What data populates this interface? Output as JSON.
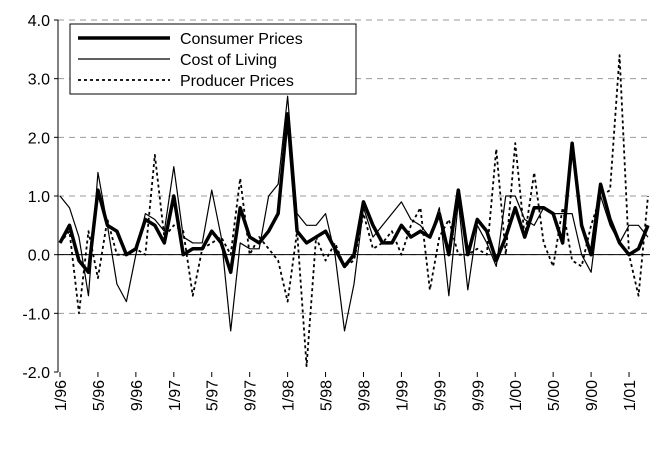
{
  "chart_data": {
    "type": "line",
    "categories": [
      "1/96",
      null,
      null,
      null,
      "5/96",
      null,
      null,
      null,
      "9/96",
      null,
      null,
      null,
      "1/97",
      null,
      null,
      null,
      "5/97",
      null,
      null,
      null,
      "9/97",
      null,
      null,
      null,
      "1/98",
      null,
      null,
      null,
      "5/98",
      null,
      null,
      null,
      "9/98",
      null,
      null,
      null,
      "1/99",
      null,
      null,
      null,
      "5/99",
      null,
      null,
      null,
      "9/99",
      null,
      null,
      null,
      "1/00",
      null,
      null,
      null,
      "5/00",
      null,
      null,
      null,
      "9/00",
      null,
      null,
      null,
      "1/01",
      null,
      null
    ],
    "series": [
      {
        "name": "Consumer Prices",
        "color": "#000000",
        "style": "thick",
        "values": [
          0.2,
          0.5,
          -0.1,
          -0.3,
          1.1,
          0.5,
          0.4,
          0.0,
          0.1,
          0.6,
          0.5,
          0.2,
          1.0,
          0.0,
          0.1,
          0.1,
          0.4,
          0.2,
          -0.3,
          0.8,
          0.3,
          0.2,
          0.4,
          0.7,
          2.4,
          0.4,
          0.2,
          0.3,
          0.4,
          0.1,
          -0.2,
          0.0,
          0.9,
          0.5,
          0.2,
          0.2,
          0.5,
          0.3,
          0.4,
          0.3,
          0.7,
          0.0,
          1.1,
          0.0,
          0.6,
          0.4,
          -0.1,
          0.3,
          0.8,
          0.3,
          0.8,
          0.8,
          0.7,
          0.2,
          1.9,
          0.5,
          0.0,
          1.2,
          0.6,
          0.2,
          0.0,
          0.1,
          0.5
        ]
      },
      {
        "name": "Cost of Living",
        "color": "#000000",
        "style": "thin",
        "values": [
          1.0,
          0.8,
          0.3,
          -0.7,
          1.4,
          0.5,
          -0.5,
          -0.8,
          0.0,
          0.7,
          0.6,
          0.4,
          1.5,
          0.3,
          0.2,
          0.2,
          1.1,
          0.3,
          -1.3,
          0.2,
          0.1,
          0.1,
          1.0,
          1.2,
          2.7,
          0.7,
          0.5,
          0.5,
          0.7,
          0.0,
          -1.3,
          -0.5,
          0.8,
          0.3,
          0.5,
          0.7,
          0.9,
          0.6,
          0.5,
          0.3,
          0.8,
          -0.7,
          0.9,
          -0.6,
          0.5,
          0.2,
          -0.2,
          1.0,
          1.0,
          0.6,
          0.5,
          0.8,
          0.7,
          0.7,
          0.7,
          0.0,
          -0.3,
          1.0,
          0.5,
          0.2,
          0.5,
          0.5,
          0.3
        ]
      },
      {
        "name": "Producer Prices",
        "color": "#000000",
        "style": "dotted",
        "values": [
          0.2,
          0.4,
          -1.0,
          0.4,
          -0.4,
          0.6,
          0.0,
          0.0,
          0.1,
          0.0,
          1.7,
          0.3,
          0.5,
          0.4,
          -0.7,
          0.1,
          0.2,
          0.3,
          0.0,
          1.3,
          0.0,
          0.3,
          0.1,
          -0.1,
          -0.8,
          0.4,
          -1.9,
          0.3,
          -0.1,
          0.2,
          -0.2,
          -0.1,
          0.7,
          0.1,
          0.2,
          0.4,
          0.0,
          0.5,
          0.8,
          -0.6,
          0.3,
          0.6,
          0.0,
          0.0,
          0.1,
          0.0,
          1.8,
          0.0,
          1.9,
          0.3,
          1.4,
          0.2,
          -0.2,
          0.8,
          -0.1,
          -0.2,
          0.5,
          1.0,
          1.1,
          3.4,
          0.0,
          -0.7,
          1.0
        ]
      }
    ],
    "ylim": [
      -2,
      4
    ],
    "yticks": [
      {
        "value": -2,
        "label": "-2.0"
      },
      {
        "value": -1,
        "label": "-1.0"
      },
      {
        "value": 0,
        "label": "0.0"
      },
      {
        "value": 1,
        "label": "1.0"
      },
      {
        "value": 2,
        "label": "2.0"
      },
      {
        "value": 3,
        "label": "3.0"
      },
      {
        "value": 4,
        "label": "4.0"
      }
    ],
    "grid": true,
    "legend": "top-left"
  }
}
